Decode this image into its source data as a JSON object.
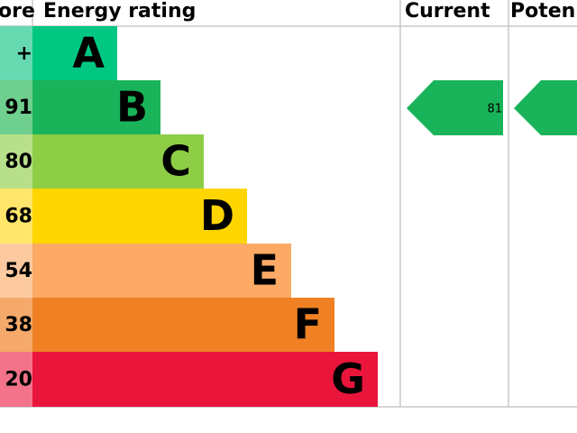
{
  "header": {
    "score": "ore",
    "rating": "Energy rating",
    "current": "Current",
    "potential": "Poten"
  },
  "rows": [
    {
      "score": "+",
      "band": "A"
    },
    {
      "score": "91",
      "band": "B"
    },
    {
      "score": "80",
      "band": "C"
    },
    {
      "score": "68",
      "band": "D"
    },
    {
      "score": "54",
      "band": "E"
    },
    {
      "score": "38",
      "band": "F"
    },
    {
      "score": "20",
      "band": "G"
    }
  ],
  "current": {
    "value": "81"
  }
}
